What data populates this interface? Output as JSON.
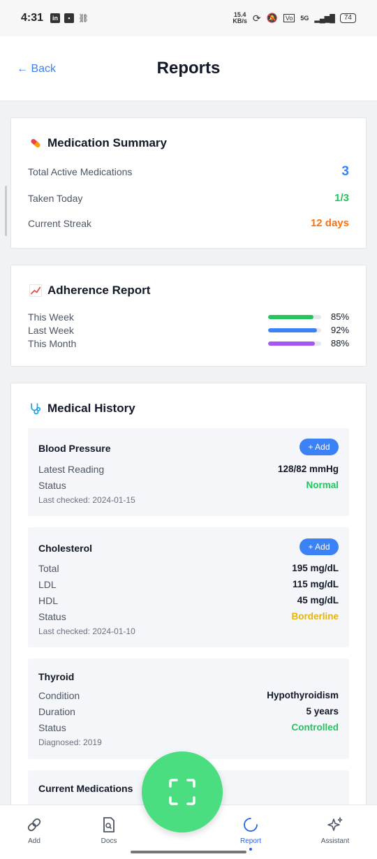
{
  "status_bar": {
    "time": "4:31",
    "speed_top": "15.4",
    "speed_bottom": "KB/s",
    "network": "5G",
    "battery": "74"
  },
  "header": {
    "back_label": "← Back",
    "title": "Reports"
  },
  "medication_summary": {
    "title": "Medication Summary",
    "rows": [
      {
        "label": "Total Active Medications",
        "value": "3",
        "color": "#3b82f6"
      },
      {
        "label": "Taken Today",
        "value": "1/3",
        "color": "#22c55e"
      },
      {
        "label": "Current Streak",
        "value": "12 days",
        "color": "#f97316"
      }
    ]
  },
  "adherence_report": {
    "title": "Adherence Report",
    "rows": [
      {
        "label": "This Week",
        "percent": 85,
        "percent_label": "85%",
        "color": "#22c55e"
      },
      {
        "label": "Last Week",
        "percent": 92,
        "percent_label": "92%",
        "color": "#3b82f6"
      },
      {
        "label": "This Month",
        "percent": 88,
        "percent_label": "88%",
        "color": "#a855f7"
      }
    ]
  },
  "medical_history": {
    "title": "Medical History",
    "add_label": "+ Add",
    "blood_pressure": {
      "title": "Blood Pressure",
      "rows": [
        {
          "label": "Latest Reading",
          "value": "128/82 mmHg"
        },
        {
          "label": "Status",
          "value": "Normal",
          "color": "#22c55e"
        }
      ],
      "note": "Last checked: 2024-01-15"
    },
    "cholesterol": {
      "title": "Cholesterol",
      "rows": [
        {
          "label": "Total",
          "value": "195 mg/dL"
        },
        {
          "label": "LDL",
          "value": "115 mg/dL"
        },
        {
          "label": "HDL",
          "value": "45 mg/dL"
        },
        {
          "label": "Status",
          "value": "Borderline",
          "color": "#eab308"
        }
      ],
      "note": "Last checked: 2024-01-10"
    },
    "thyroid": {
      "title": "Thyroid",
      "rows": [
        {
          "label": "Condition",
          "value": "Hypothyroidism"
        },
        {
          "label": "Duration",
          "value": "5 years"
        },
        {
          "label": "Status",
          "value": "Controlled",
          "color": "#22c55e"
        }
      ],
      "note": "Diagnosed: 2019"
    },
    "current_medications": {
      "title": "Current Medications"
    }
  },
  "bottom_nav": {
    "items": [
      {
        "label": "Add",
        "icon": "link-icon"
      },
      {
        "label": "Docs",
        "icon": "document-search-icon"
      },
      {
        "label": "Report",
        "icon": "loading-circle-icon",
        "active": true
      },
      {
        "label": "Assistant",
        "icon": "sparkles-icon"
      }
    ]
  },
  "fab": {
    "icon": "scan-frame-icon"
  }
}
